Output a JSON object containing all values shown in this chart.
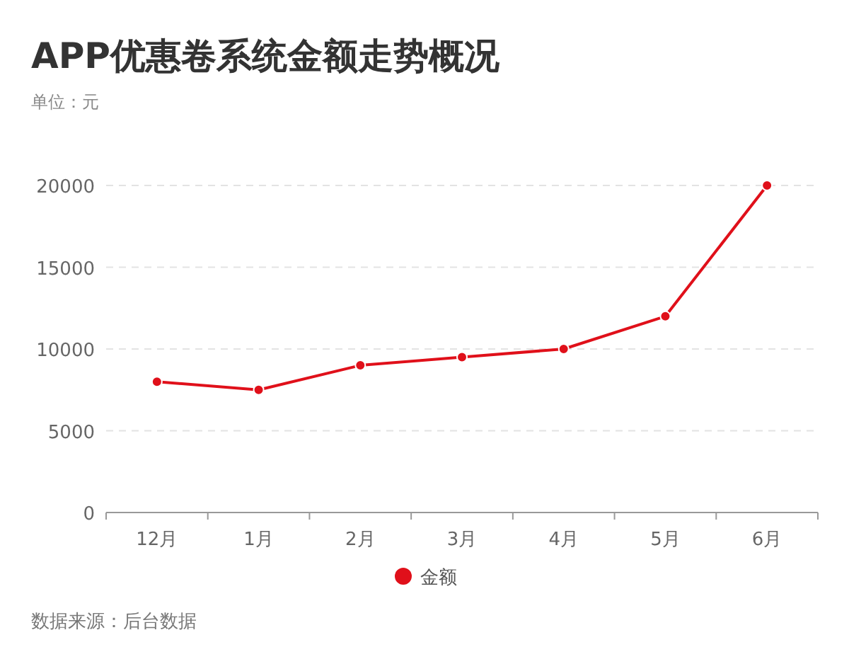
{
  "chart_data": {
    "type": "line",
    "title": "APP优惠卷系统金额走势概况",
    "ylabel": "单位：元",
    "categories": [
      "12月",
      "1月",
      "2月",
      "3月",
      "4月",
      "5月",
      "6月"
    ],
    "series": [
      {
        "name": "金额",
        "color": "#e0101a",
        "values": [
          8000,
          7500,
          9000,
          9500,
          10000,
          12000,
          20000
        ]
      }
    ],
    "ylim": [
      0,
      20000
    ],
    "yticks": [
      0,
      5000,
      10000,
      15000,
      20000
    ],
    "grid": "y",
    "legend": "bottom",
    "marker": "circle",
    "line_style": "solid",
    "annotations": [
      "数据来源：后台数据"
    ]
  }
}
